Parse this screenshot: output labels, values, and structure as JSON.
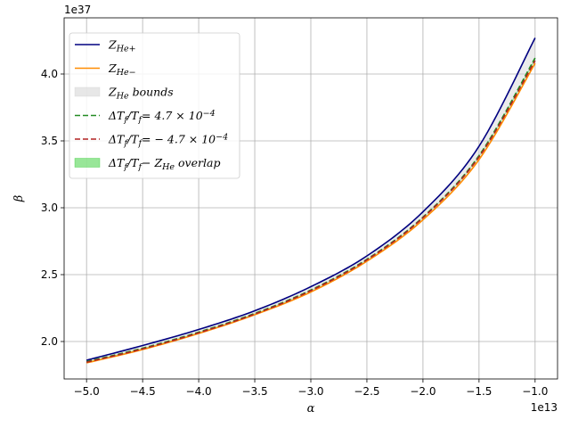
{
  "chart_data": {
    "type": "line",
    "title": "",
    "xlabel": "α",
    "ylabel": "β",
    "x_offset_label": "1e13",
    "y_offset_label": "1e37",
    "xlim": [
      -5.2,
      -0.8
    ],
    "ylim": [
      1.72,
      4.42
    ],
    "x_ticks": [
      -5.0,
      -4.5,
      -4.0,
      -3.5,
      -3.0,
      -2.5,
      -2.0,
      -1.5,
      -1.0
    ],
    "x_tick_labels": [
      "−5.0",
      "−4.5",
      "−4.0",
      "−3.5",
      "−3.0",
      "−2.5",
      "−2.0",
      "−1.5",
      "−1.0"
    ],
    "y_ticks": [
      2.0,
      2.5,
      3.0,
      3.5,
      4.0
    ],
    "y_tick_labels": [
      "2.0",
      "2.5",
      "3.0",
      "3.5",
      "4.0"
    ],
    "grid": true,
    "legend_position": "top-left",
    "x": [
      -5.0,
      -4.5,
      -4.0,
      -3.5,
      -3.0,
      -2.5,
      -2.0,
      -1.5,
      -1.0
    ],
    "series": [
      {
        "name": "Z_He+",
        "legend_parts": [
          [
            "Z",
            "normal"
          ],
          [
            "He+",
            "sub"
          ]
        ],
        "style": "solid",
        "color": "#000080",
        "values": [
          1.86,
          1.97,
          2.09,
          2.23,
          2.41,
          2.64,
          2.97,
          3.46,
          4.27
        ]
      },
      {
        "name": "Z_He−",
        "legend_parts": [
          [
            "Z",
            "normal"
          ],
          [
            "He−",
            "sub"
          ]
        ],
        "style": "solid",
        "color": "#ff8c00",
        "values": [
          1.84,
          1.94,
          2.06,
          2.2,
          2.37,
          2.6,
          2.91,
          3.36,
          4.08
        ]
      },
      {
        "name": "ΔT_f/T_f = 4.7 × 10^-4",
        "legend_parts": [
          [
            "ΔT",
            "normal"
          ],
          [
            "f",
            "sub"
          ],
          [
            "/T",
            "normal"
          ],
          [
            "f",
            "sub"
          ],
          [
            "= 4.7 × 10",
            "normal"
          ],
          [
            "−4",
            "sup"
          ]
        ],
        "style": "dashed",
        "color": "#228b22",
        "values": [
          1.85,
          1.95,
          2.07,
          2.21,
          2.385,
          2.615,
          2.93,
          3.39,
          4.12
        ]
      },
      {
        "name": "ΔT_f/T_f = −4.7 × 10^-4",
        "legend_parts": [
          [
            "ΔT",
            "normal"
          ],
          [
            "f",
            "sub"
          ],
          [
            "/T",
            "normal"
          ],
          [
            "f",
            "sub"
          ],
          [
            "= − 4.7 × 10",
            "normal"
          ],
          [
            "−4",
            "sup"
          ]
        ],
        "style": "dashed",
        "color": "#b22222",
        "values": [
          1.845,
          1.945,
          2.065,
          2.205,
          2.38,
          2.61,
          2.925,
          3.38,
          4.1
        ]
      }
    ],
    "bands": [
      {
        "name": "Z_He bounds",
        "legend_parts": [
          [
            "Z",
            "normal"
          ],
          [
            "He",
            "sub"
          ],
          [
            " bounds",
            "normal"
          ]
        ],
        "color": "#d3d3d3",
        "opacity": 0.45,
        "upper_series": 0,
        "lower_series": 1
      },
      {
        "name": "ΔT_f/T_f − Z_He overlap",
        "legend_parts": [
          [
            "ΔT",
            "normal"
          ],
          [
            "f",
            "sub"
          ],
          [
            "/T",
            "normal"
          ],
          [
            "f",
            "sub"
          ],
          [
            "− Z",
            "normal"
          ],
          [
            "He",
            "sub"
          ],
          [
            " overlap",
            "normal"
          ]
        ],
        "color": "#32cd32",
        "opacity": 0.4,
        "upper_series": 2,
        "lower_series": 3
      }
    ],
    "legend_order": [
      [
        "series",
        0
      ],
      [
        "series",
        1
      ],
      [
        "band",
        0
      ],
      [
        "series",
        2
      ],
      [
        "series",
        3
      ],
      [
        "band",
        1
      ]
    ]
  }
}
